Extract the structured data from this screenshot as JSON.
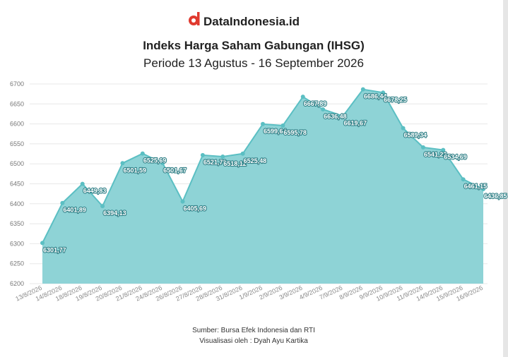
{
  "brand": "DataIndonesia.id",
  "chart_data": {
    "type": "area",
    "title": "Indeks Harga Saham Gabungan (IHSG)",
    "subtitle": "Periode 13 Agustus - 16 September 2026",
    "categories": [
      "13/8/2026",
      "14/8/2026",
      "18/8/2026",
      "19/8/2026",
      "20/8/2026",
      "21/8/2026",
      "24/8/2026",
      "26/8/2026",
      "27/8/2026",
      "28/8/2026",
      "31/8/2026",
      "1/9/2026",
      "2/9/2026",
      "3/9/2026",
      "4/9/2026",
      "7/9/2026",
      "8/9/2026",
      "9/9/2026",
      "10/9/2026",
      "11/9/2026",
      "14/9/2026",
      "15/9/2026",
      "16/9/2026"
    ],
    "values": [
      6301.77,
      6401.89,
      6449.83,
      6394.13,
      6501.59,
      6525.69,
      6501.67,
      6405.69,
      6521.76,
      6518.12,
      6525.48,
      6599.64,
      6595.78,
      6667.89,
      6636.48,
      6619.67,
      6686.44,
      6678.25,
      6589.34,
      6541.22,
      6534.69,
      6461.15,
      6436.85
    ],
    "value_labels": [
      "6301,77",
      "6401,89",
      "6449,83",
      "6394,13",
      "6501,59",
      "6525,69",
      "6501,67",
      "6405,69",
      "6521,76",
      "6518,12",
      "6525,48",
      "6599,64",
      "6595,78",
      "6667,89",
      "6636,48",
      "6619,67",
      "6686,44",
      "6678,25",
      "6589,34",
      "6541,22",
      "6534,69",
      "6461,15",
      "6436,85"
    ],
    "color": "#5bbfc3",
    "fill": "#8ed3d6",
    "ylim": [
      6200,
      6700
    ],
    "yticks": [
      6200,
      6250,
      6300,
      6350,
      6400,
      6450,
      6500,
      6550,
      6600,
      6650,
      6700
    ],
    "grid": true
  },
  "footer": {
    "source": "Sumber: Bursa Efek Indonesia dan RTI",
    "credit": "Visualisasi oleh : Dyah Ayu Kartika"
  }
}
